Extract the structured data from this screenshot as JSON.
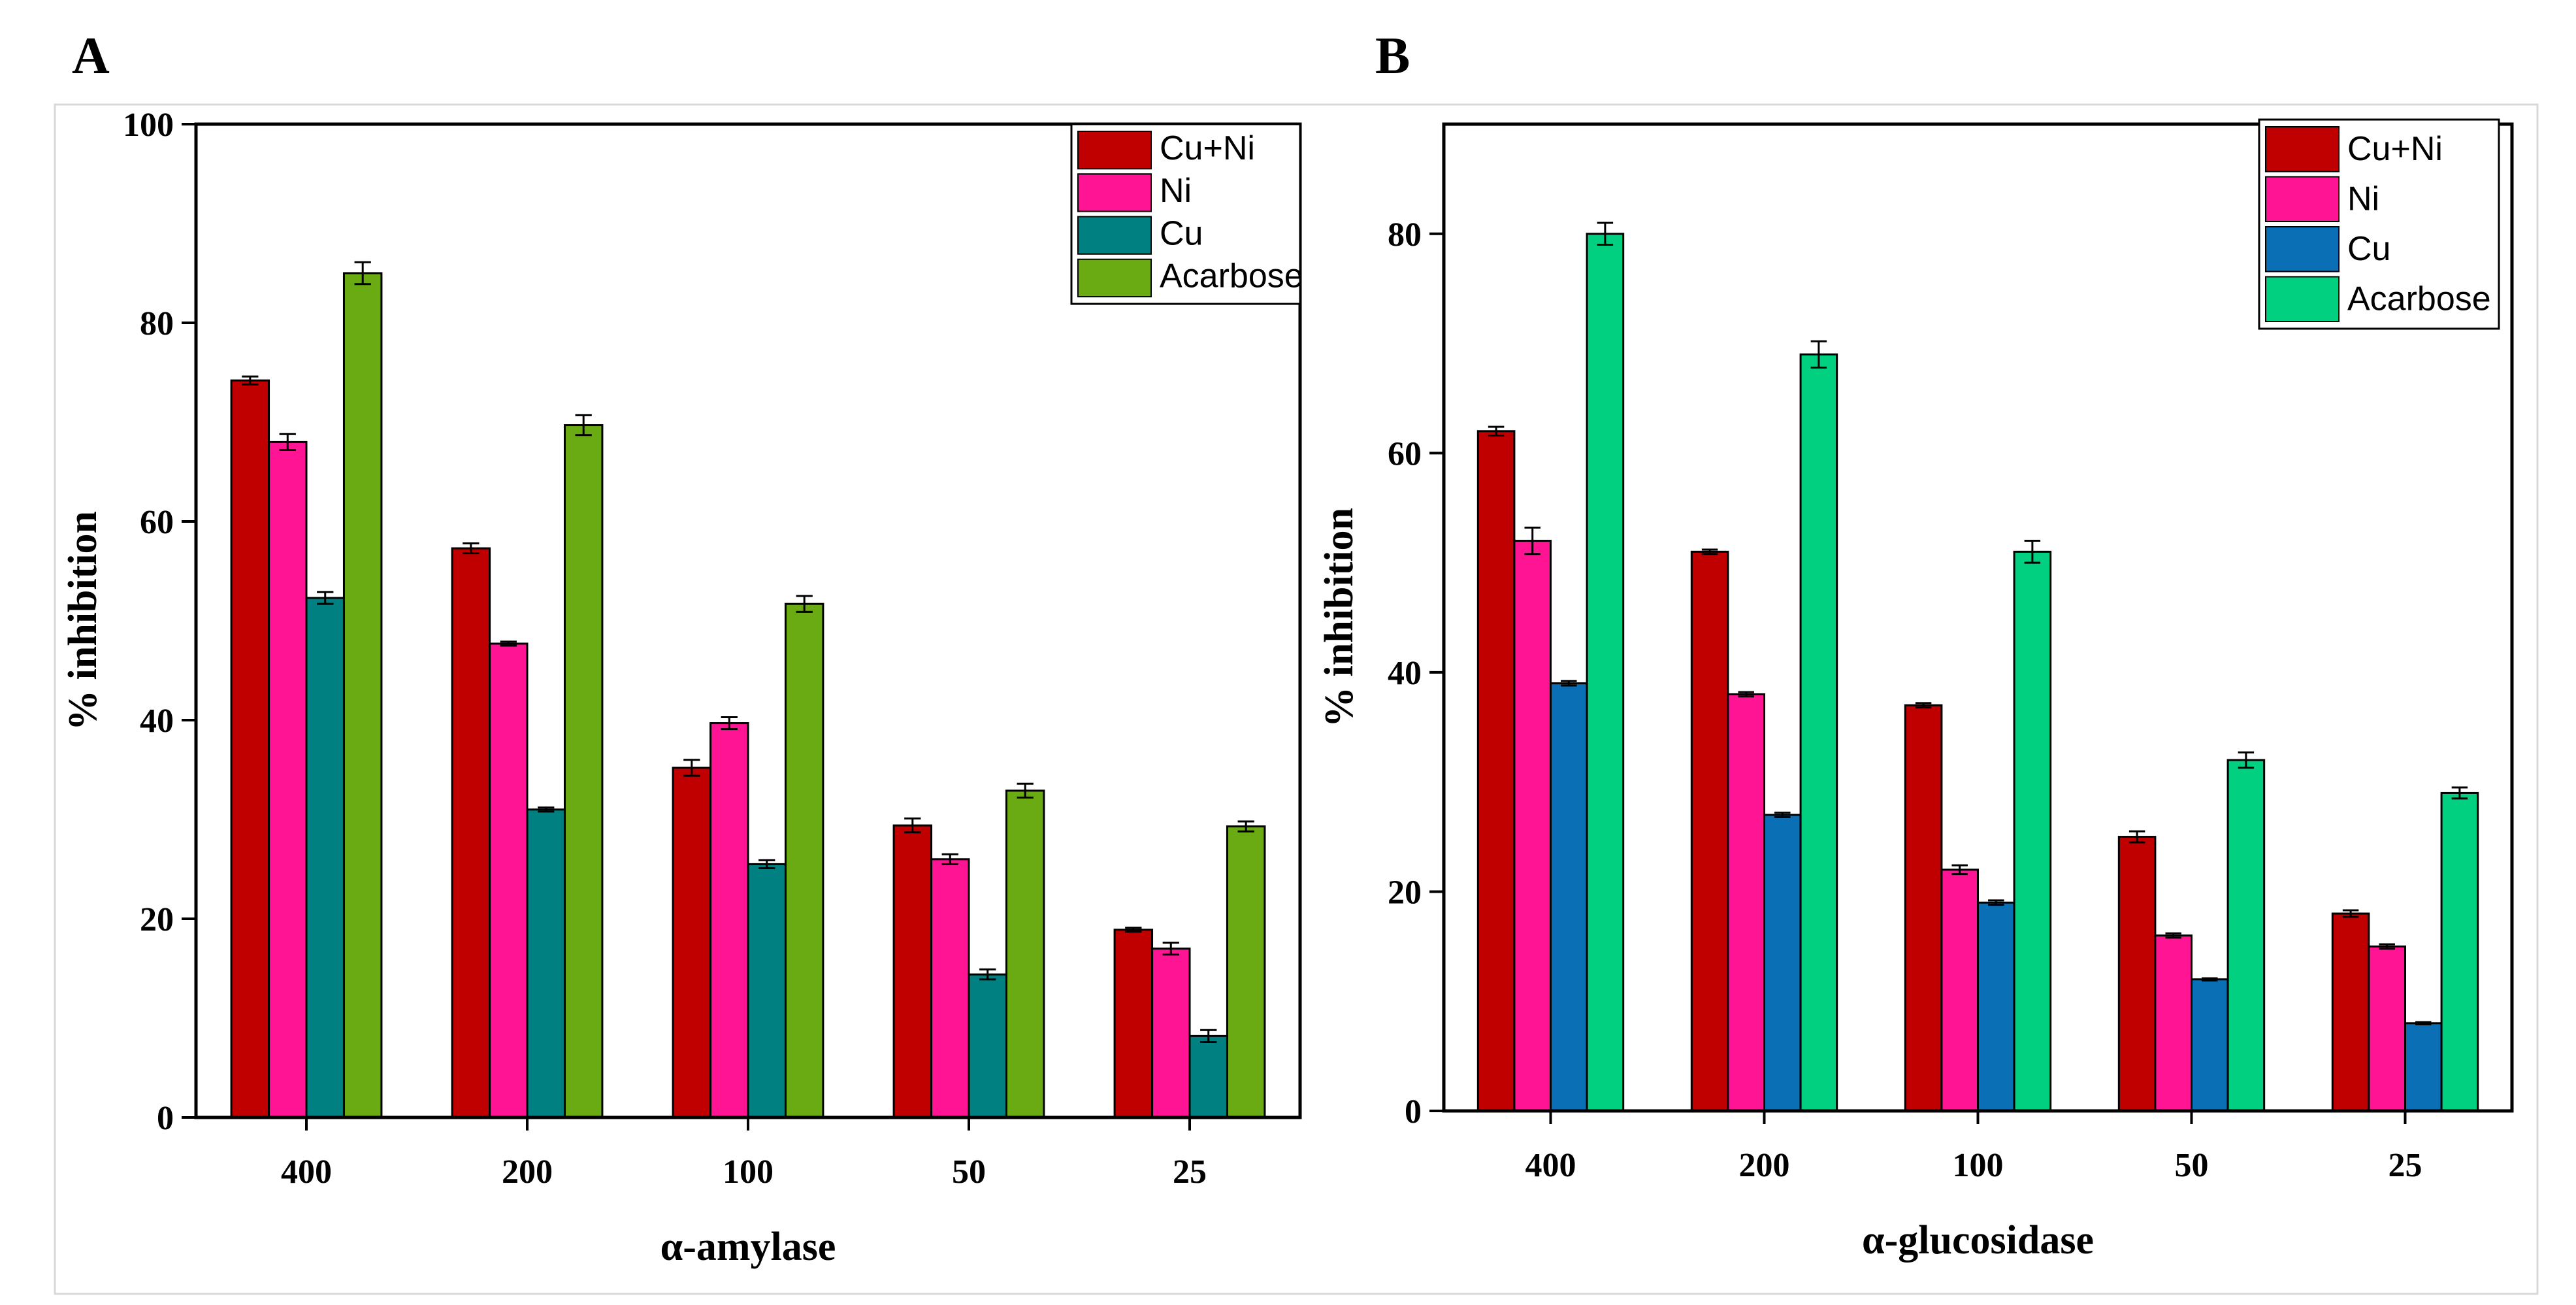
{
  "chart_data": [
    {
      "type": "bar",
      "panel_label": "A",
      "title": "",
      "xlabel": "α-amylase",
      "ylabel": "% inhibition",
      "ylim": [
        0,
        100
      ],
      "yticks": [
        0,
        20,
        40,
        60,
        80,
        100
      ],
      "categories": [
        "400",
        "200",
        "100",
        "50",
        "25"
      ],
      "legend_position": "top-right",
      "grid": false,
      "series": [
        {
          "name": "Cu+Ni",
          "color": "#c00000",
          "values": [
            74.2,
            57.3,
            35.2,
            29.4,
            18.9
          ],
          "errors": [
            0.4,
            0.5,
            0.8,
            0.7,
            0.2
          ]
        },
        {
          "name": "Ni",
          "color": "#ff1493",
          "values": [
            68.0,
            47.7,
            39.7,
            26.0,
            17.0
          ],
          "errors": [
            0.8,
            0.2,
            0.6,
            0.5,
            0.6
          ]
        },
        {
          "name": "Cu",
          "color": "#008080",
          "values": [
            52.3,
            31.0,
            25.5,
            14.4,
            8.2
          ],
          "errors": [
            0.6,
            0.2,
            0.4,
            0.5,
            0.6
          ]
        },
        {
          "name": "Acarbose",
          "color": "#6aaa13",
          "values": [
            85.0,
            69.7,
            51.7,
            32.9,
            29.3
          ],
          "errors": [
            1.1,
            1.0,
            0.8,
            0.7,
            0.5
          ]
        }
      ]
    },
    {
      "type": "bar",
      "panel_label": "B",
      "title": "",
      "xlabel": "α-glucosidase",
      "ylabel": "% inhibition",
      "ylim": [
        0,
        90
      ],
      "yticks": [
        0,
        20,
        40,
        60,
        80
      ],
      "categories": [
        "400",
        "200",
        "100",
        "50",
        "25"
      ],
      "legend_position": "top-right",
      "grid": false,
      "series": [
        {
          "name": "Cu+Ni",
          "color": "#c00000",
          "values": [
            62.0,
            51.0,
            37.0,
            25.0,
            18.0
          ],
          "errors": [
            0.4,
            0.2,
            0.2,
            0.5,
            0.3
          ]
        },
        {
          "name": "Ni",
          "color": "#ff1493",
          "values": [
            52.0,
            38.0,
            22.0,
            16.0,
            15.0
          ],
          "errors": [
            1.2,
            0.2,
            0.4,
            0.2,
            0.2
          ]
        },
        {
          "name": "Cu",
          "color": "#0a6fb5",
          "values": [
            39.0,
            27.0,
            19.0,
            12.0,
            8.0
          ],
          "errors": [
            0.2,
            0.2,
            0.2,
            0.1,
            0.1
          ]
        },
        {
          "name": "Acarbose",
          "color": "#00d080",
          "values": [
            80.0,
            69.0,
            51.0,
            32.0,
            29.0
          ],
          "errors": [
            1.0,
            1.2,
            1.0,
            0.7,
            0.5
          ]
        }
      ]
    }
  ]
}
